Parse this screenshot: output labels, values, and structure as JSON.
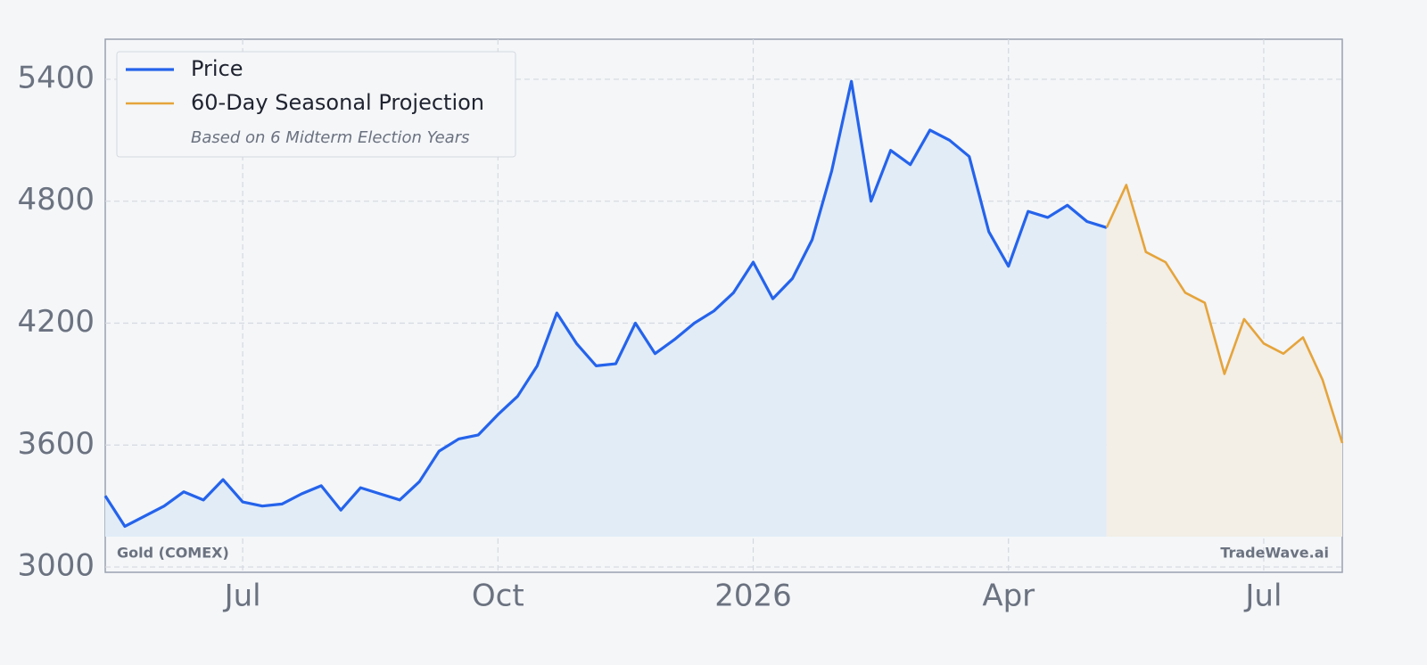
{
  "chart_data": {
    "type": "line",
    "categories": [
      null,
      null,
      null,
      null,
      null,
      null,
      null,
      "Jul",
      null,
      null,
      null,
      null,
      null,
      null,
      null,
      null,
      null,
      null,
      null,
      null,
      "Oct",
      null,
      null,
      null,
      null,
      null,
      null,
      null,
      null,
      null,
      null,
      null,
      null,
      "2026",
      null,
      null,
      null,
      null,
      null,
      null,
      null,
      null,
      null,
      null,
      null,
      null,
      "Apr",
      null,
      null,
      null,
      null,
      null,
      null,
      null,
      null,
      null,
      null,
      null,
      null,
      "Jul",
      null,
      null,
      null,
      null
    ],
    "series": [
      {
        "name": "Price",
        "color": "#2563eb",
        "fill": "#e1ecf7",
        "values": [
          3350,
          3200,
          3250,
          3300,
          3370,
          3330,
          3430,
          3320,
          3300,
          3310,
          3360,
          3400,
          3280,
          3390,
          3360,
          3330,
          3420,
          3570,
          3630,
          3650,
          3750,
          3840,
          3990,
          4250,
          4100,
          3990,
          4000,
          4200,
          4050,
          4120,
          4200,
          4260,
          4350,
          4500,
          4320,
          4420,
          4610,
          4950,
          5390,
          4800,
          5050,
          4980,
          5150,
          5100,
          5020,
          4650,
          4480,
          4750,
          4720,
          4780,
          4700,
          4670,
          null,
          null,
          null,
          null,
          null,
          null,
          null,
          null,
          null,
          null,
          null,
          null
        ]
      },
      {
        "name": "60-Day Seasonal Projection",
        "color": "#e5a43b",
        "fill": "#f3eee6",
        "values": [
          null,
          null,
          null,
          null,
          null,
          null,
          null,
          null,
          null,
          null,
          null,
          null,
          null,
          null,
          null,
          null,
          null,
          null,
          null,
          null,
          null,
          null,
          null,
          null,
          null,
          null,
          null,
          null,
          null,
          null,
          null,
          null,
          null,
          null,
          null,
          null,
          null,
          null,
          null,
          null,
          null,
          null,
          null,
          null,
          null,
          null,
          null,
          null,
          null,
          null,
          null,
          4670,
          4880,
          4550,
          4500,
          4350,
          4300,
          3950,
          4220,
          4100,
          4050,
          4130,
          3920,
          3610
        ]
      }
    ],
    "legend_note": "Based on 6 Midterm Election Years",
    "annotations": [
      "Gold (COMEX)",
      "TradeWave.ai"
    ],
    "ylim": [
      2974,
      5597
    ],
    "yticks": [
      3000,
      3600,
      4200,
      4800,
      5400
    ],
    "grid": true,
    "legend": "upper left"
  }
}
